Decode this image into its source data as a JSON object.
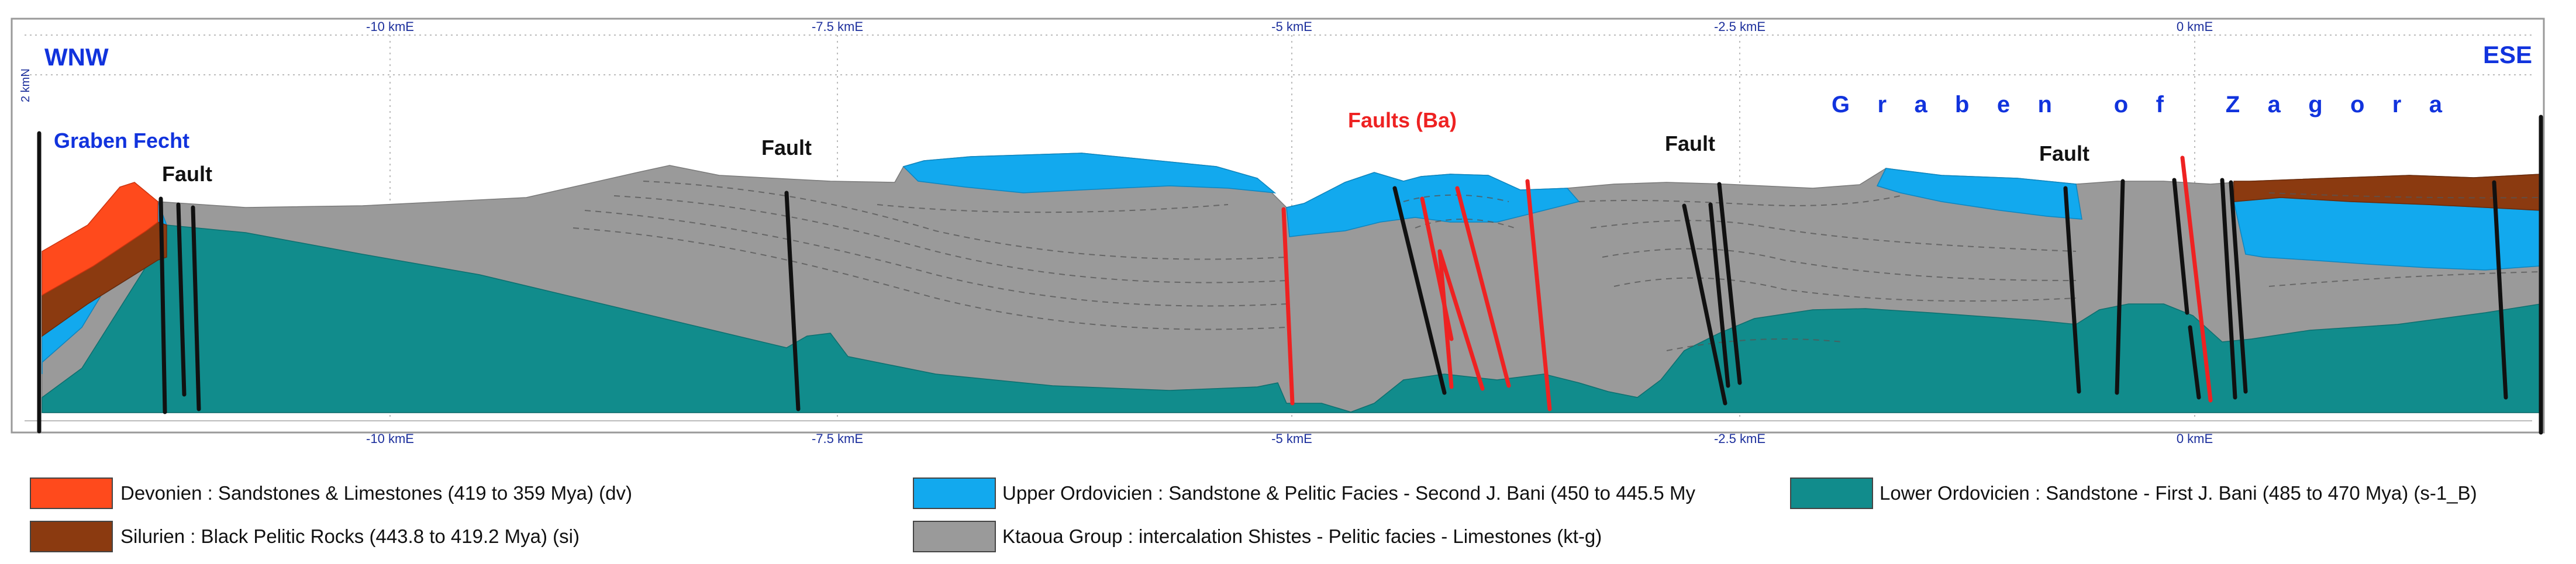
{
  "cross_section": {
    "x_axis": {
      "unit": "kmE",
      "ticks": [
        {
          "value": -10,
          "label": "-10 kmE"
        },
        {
          "value": -7.5,
          "label": "-7.5 kmE"
        },
        {
          "value": -5,
          "label": "-5 kmE"
        },
        {
          "value": -2.5,
          "label": "-2.5 kmE"
        },
        {
          "value": 0,
          "label": "0 kmE"
        }
      ]
    },
    "y_axis_label": "2 kmN",
    "directions": {
      "left": "WNW",
      "right": "ESE"
    },
    "annotations": {
      "graben_fecht": "Graben Fecht",
      "fault_1": "Fault",
      "fault_2": "Fault",
      "faults_ba": "Faults (Ba)",
      "fault_3": "Fault",
      "fault_4": "Fault",
      "graben_zagora": "Graben of Zagora"
    },
    "colors": {
      "devonien": "#ff4a1c",
      "silurien": "#8b3a10",
      "upper_ordovicien": "#12a9ee",
      "lower_ordovicien": "#118c8c",
      "ktaoua": "#9a9a9a",
      "fault_black": "#111111",
      "fault_red": "#ee2222"
    }
  },
  "legend": {
    "items": [
      {
        "key": "devonien",
        "text": "Devonien : Sandstones & Limestones (419 to 359 Mya) (dv)",
        "color": "#ff4a1c"
      },
      {
        "key": "upper_ordovicien",
        "text": "Upper Ordovicien : Sandstone & Pelitic Facies - Second J. Bani  (450 to 445.5 My",
        "color": "#12a9ee"
      },
      {
        "key": "lower_ordovicien",
        "text": "Lower Ordovicien : Sandstone - First J. Bani  (485 to 470 Mya) (s-1_B)",
        "color": "#118c8c"
      },
      {
        "key": "silurien",
        "text": "Silurien : Black Pelitic Rocks (443.8 to 419.2 Mya) (si)",
        "color": "#8b3a10"
      },
      {
        "key": "ktaoua",
        "text": "Ktaoua Group : intercalation Shistes - Pelitic facies - Limestones (kt-g)",
        "color": "#9a9a9a"
      }
    ]
  }
}
